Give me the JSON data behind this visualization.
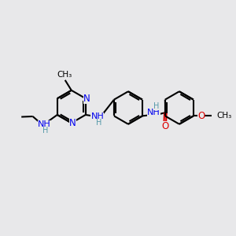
{
  "bg_color": "#e8e8ea",
  "bond_color": "#000000",
  "n_color": "#0000ee",
  "o_color": "#dd0000",
  "lw": 1.5,
  "dbl_sep": 0.09,
  "figsize": [
    3.0,
    3.0
  ],
  "dpi": 100,
  "xlim": [
    0,
    10
  ],
  "ylim": [
    0,
    10
  ]
}
